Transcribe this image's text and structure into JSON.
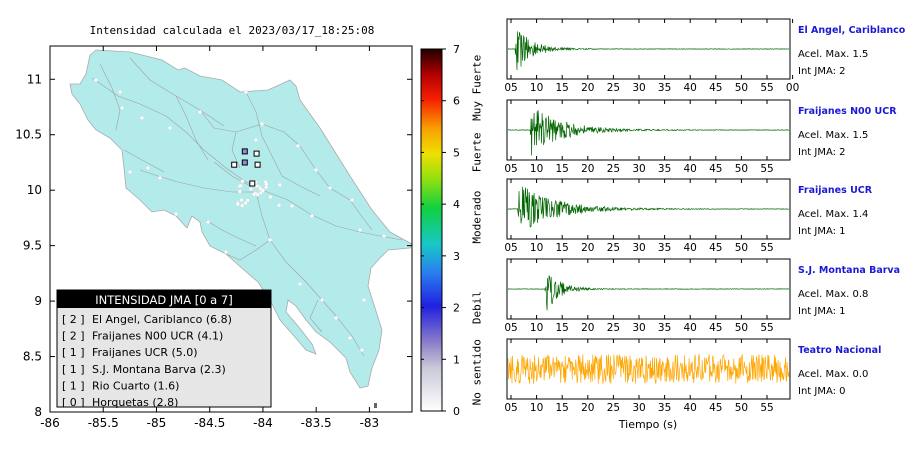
{
  "map": {
    "title": "Intensidad calculada el 2023/03/17_18:25:08",
    "xlim": [
      -86,
      -82.6
    ],
    "ylim": [
      8,
      11.3
    ],
    "xticks": [
      "-86",
      "-85.5",
      "-85",
      "-84.5",
      "-84",
      "-83.5",
      "-83"
    ],
    "yticks": [
      "8",
      "8.5",
      "9",
      "9.5",
      "10",
      "10.5",
      "11"
    ],
    "land_color": "#b3ebeb",
    "stations": [
      {
        "lon": -84.17,
        "lat": 10.35,
        "jma": 2
      },
      {
        "lon": -84.17,
        "lat": 10.25,
        "jma": 2
      },
      {
        "lon": -84.1,
        "lat": 10.06,
        "jma": 1
      },
      {
        "lon": -84.06,
        "lat": 10.33,
        "jma": 1
      },
      {
        "lon": -84.05,
        "lat": 10.23,
        "jma": 1
      },
      {
        "lon": -84.27,
        "lat": 10.23,
        "jma": 0
      }
    ]
  },
  "legend": {
    "title": "INTENSIDAD JMA [0 a 7]",
    "items": [
      {
        "jma": "[ 2 ]",
        "name": "El Angel, Cariblanco (6.8)"
      },
      {
        "jma": "[ 2 ]",
        "name": "Fraijanes N00 UCR (4.1)"
      },
      {
        "jma": "[ 1 ]",
        "name": "Fraijanes UCR (5.0)"
      },
      {
        "jma": "[ 1 ]",
        "name": "S.J. Montana Barva (2.3)"
      },
      {
        "jma": "[ 1 ]",
        "name": "Rio Cuarto (1.6)"
      },
      {
        "jma": "[ 0 ]",
        "name": "Horquetas (2.8)"
      }
    ]
  },
  "colorbar": {
    "ticks": [
      "0",
      "1",
      "2",
      "3",
      "4",
      "5",
      "6",
      "7"
    ],
    "labels": [
      {
        "text": "No sentido",
        "center": 0.75
      },
      {
        "text": "Debil",
        "center": 2.0
      },
      {
        "text": "Moderado",
        "center": 3.75
      },
      {
        "text": "Fuerte",
        "center": 5.0
      },
      {
        "text": "Muy Fuerte",
        "center": 6.25
      }
    ]
  },
  "chart_data": {
    "type": "line",
    "xlabel": "Tiempo (s)",
    "panels": [
      {
        "name": "El Angel, Cariblanco",
        "acel": "Acel. Max. 1.5",
        "jma": "Int JMA: 2",
        "color": "#006400",
        "x_ticks": [
          "05",
          "10",
          "15",
          "20",
          "25",
          "30",
          "35",
          "40",
          "45",
          "50",
          "55",
          "00"
        ],
        "onset": 1.5,
        "decay": 3.0,
        "amp": 1.0,
        "noise": 0.01
      },
      {
        "name": "Fraijanes N00 UCR",
        "acel": "Acel. Max. 1.5",
        "jma": "Int JMA: 2",
        "color": "#006400",
        "x_ticks": [
          "05",
          "10",
          "15",
          "20",
          "25",
          "30",
          "35",
          "40",
          "45",
          "50",
          "55"
        ],
        "onset": 4.5,
        "decay": 6.0,
        "amp": 1.0,
        "noise": 0.01
      },
      {
        "name": "Fraijanes UCR",
        "acel": "Acel. Max. 1.4",
        "jma": "Int JMA: 1",
        "color": "#006400",
        "x_ticks": [
          "05",
          "10",
          "15",
          "20",
          "25",
          "30",
          "35",
          "40",
          "45",
          "50",
          "55"
        ],
        "onset": 2.0,
        "decay": 7.0,
        "amp": 1.0,
        "noise": 0.01
      },
      {
        "name": "S.J. Montana Barva",
        "acel": "Acel. Max. 0.8",
        "jma": "Int JMA: 1",
        "color": "#006400",
        "x_ticks": [
          "05",
          "10",
          "15",
          "20",
          "25",
          "30",
          "35",
          "40",
          "45",
          "50",
          "55"
        ],
        "onset": 7.5,
        "decay": 2.5,
        "amp": 1.0,
        "noise": 0.01
      },
      {
        "name": "Teatro Nacional",
        "acel": "Acel. Max. 0.0",
        "jma": "Int JMA: 0",
        "color": "#ffa500",
        "x_ticks": [
          "05",
          "10",
          "15",
          "20",
          "25",
          "30",
          "35",
          "40",
          "45",
          "50",
          "55"
        ],
        "onset": 0,
        "decay": 0,
        "amp": 0,
        "noise": 0.55
      }
    ]
  }
}
